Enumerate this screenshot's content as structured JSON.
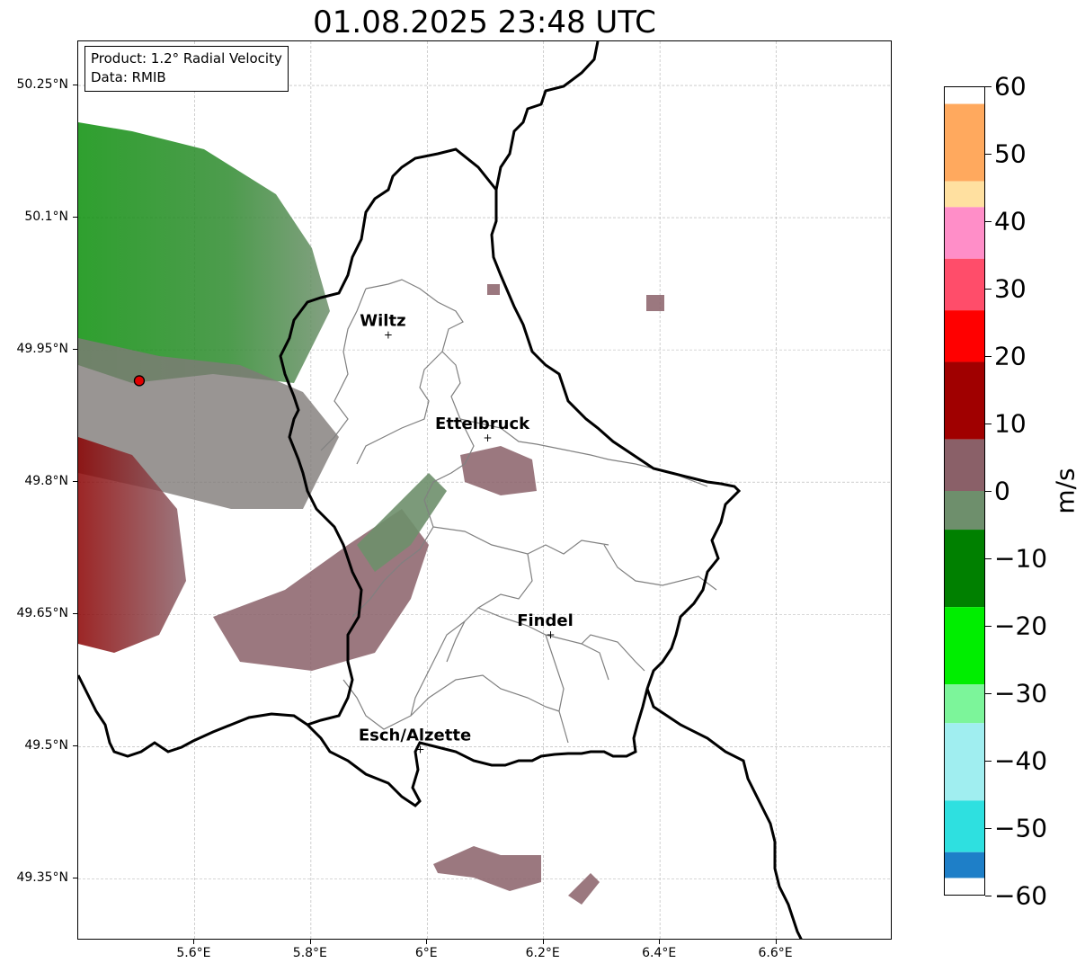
{
  "title": "01.08.2025 23:48 UTC",
  "info": {
    "product": "Product: 1.2° Radial Velocity",
    "source": "Data: RMIB"
  },
  "map": {
    "extent": {
      "lon_min": 5.4,
      "lon_max": 6.8,
      "lat_min": 49.28,
      "lat_max": 50.3
    },
    "lat_ticks": [
      {
        "value": 50.25,
        "label": "50.25°N"
      },
      {
        "value": 50.1,
        "label": "50.1°N"
      },
      {
        "value": 49.95,
        "label": "49.95°N"
      },
      {
        "value": 49.8,
        "label": "49.8°N"
      },
      {
        "value": 49.65,
        "label": "49.65°N"
      },
      {
        "value": 49.5,
        "label": "49.5°N"
      },
      {
        "value": 49.35,
        "label": "49.35°N"
      }
    ],
    "lon_ticks": [
      {
        "value": 5.6,
        "label": "5.6°E"
      },
      {
        "value": 5.8,
        "label": "5.8°E"
      },
      {
        "value": 6.0,
        "label": "6°E"
      },
      {
        "value": 6.2,
        "label": "6.2°E"
      },
      {
        "value": 6.4,
        "label": "6.4°E"
      },
      {
        "value": 6.6,
        "label": "6.6°E"
      }
    ],
    "radar_site": {
      "lon": 5.505,
      "lat": 49.915
    },
    "cities": [
      {
        "name": "Wiltz",
        "lon": 5.933,
        "lat": 49.967
      },
      {
        "name": "Ettelbruck",
        "lon": 6.104,
        "lat": 49.85
      },
      {
        "name": "Findel",
        "lon": 6.212,
        "lat": 49.627
      },
      {
        "name": "Esch/Alzette",
        "lon": 5.988,
        "lat": 49.497
      }
    ],
    "colors": {
      "border": "#000000",
      "cantons": "#808080",
      "grid": "#b0b0b0",
      "radar_site": "#e00000"
    }
  },
  "colorbar": {
    "label": "m/s",
    "min": -60,
    "max": 60,
    "ticks": [
      {
        "value": 60,
        "label": "60"
      },
      {
        "value": 50,
        "label": "50"
      },
      {
        "value": 40,
        "label": "40"
      },
      {
        "value": 30,
        "label": "30"
      },
      {
        "value": 20,
        "label": "20"
      },
      {
        "value": 10,
        "label": "10"
      },
      {
        "value": 0,
        "label": "0"
      },
      {
        "value": -10,
        "label": "−10"
      },
      {
        "value": -20,
        "label": "−20"
      },
      {
        "value": -30,
        "label": "−30"
      },
      {
        "value": -40,
        "label": "−40"
      },
      {
        "value": -50,
        "label": "−50"
      },
      {
        "value": -60,
        "label": "−60"
      }
    ],
    "stops": [
      {
        "from": 48,
        "to": 60,
        "color": "#ffa95e"
      },
      {
        "from": 44,
        "to": 48,
        "color": "#ffe0a0"
      },
      {
        "from": 36,
        "to": 44,
        "color": "#ff8ec8"
      },
      {
        "from": 28,
        "to": 36,
        "color": "#ff4d6a"
      },
      {
        "from": 20,
        "to": 28,
        "color": "#ff0000"
      },
      {
        "from": 8,
        "to": 20,
        "color": "#a00000"
      },
      {
        "from": 0,
        "to": 8,
        "color": "#8a6068"
      },
      {
        "from": -6,
        "to": 0,
        "color": "#6e8f6c"
      },
      {
        "from": -18,
        "to": -6,
        "color": "#008000"
      },
      {
        "from": -30,
        "to": -18,
        "color": "#00ee00"
      },
      {
        "from": -36,
        "to": -30,
        "color": "#7cf59a"
      },
      {
        "from": -48,
        "to": -36,
        "color": "#a0eef0"
      },
      {
        "from": -56,
        "to": -48,
        "color": "#2ee0e0"
      },
      {
        "from": -60,
        "to": -56,
        "color": "#1e7fc8"
      }
    ]
  }
}
